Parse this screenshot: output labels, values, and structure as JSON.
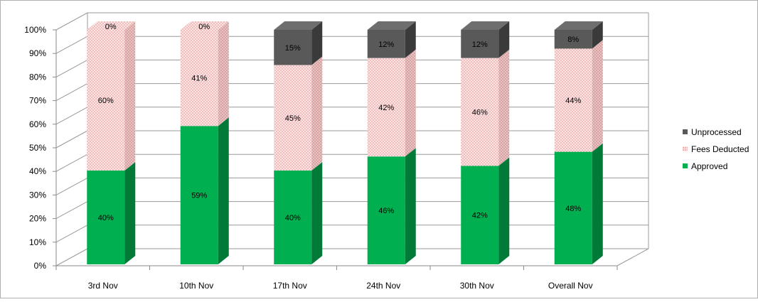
{
  "chart_data": {
    "type": "bar",
    "stacked": true,
    "three_d": true,
    "categories": [
      "3rd Nov",
      "10th Nov",
      "17th Nov",
      "24th Nov",
      "30th Nov",
      "Overall Nov"
    ],
    "series": [
      {
        "name": "Approved",
        "values": [
          40,
          59,
          40,
          46,
          42,
          48
        ],
        "labels": [
          "40%",
          "59%",
          "40%",
          "46%",
          "42%",
          "48%"
        ],
        "color": "#00b050",
        "side_color": "#007a36",
        "top_color": "#00c55a"
      },
      {
        "name": "Fees Deducted",
        "values": [
          60,
          41,
          45,
          42,
          46,
          44
        ],
        "labels": [
          "60%",
          "41%",
          "45%",
          "42%",
          "46%",
          "44%"
        ],
        "color": "#f8d0d0",
        "side_color": "#d9a6a6",
        "top_color": "#fbe2e2"
      },
      {
        "name": "Unprocessed",
        "values": [
          0,
          0,
          15,
          12,
          12,
          8
        ],
        "labels": [
          "0%",
          "0%",
          "15%",
          "12%",
          "12%",
          "8%"
        ],
        "color": "#595959",
        "side_color": "#3a3a3a",
        "top_color": "#6e6e6e"
      }
    ],
    "y_ticks": [
      "0%",
      "10%",
      "20%",
      "30%",
      "40%",
      "50%",
      "60%",
      "70%",
      "80%",
      "90%",
      "100%"
    ],
    "ylim": [
      0,
      100
    ],
    "title": "",
    "xlabel": "",
    "ylabel": "",
    "legend_placement": "right",
    "legend_order": [
      "Unprocessed",
      "Fees Deducted",
      "Approved"
    ],
    "grid": true
  }
}
